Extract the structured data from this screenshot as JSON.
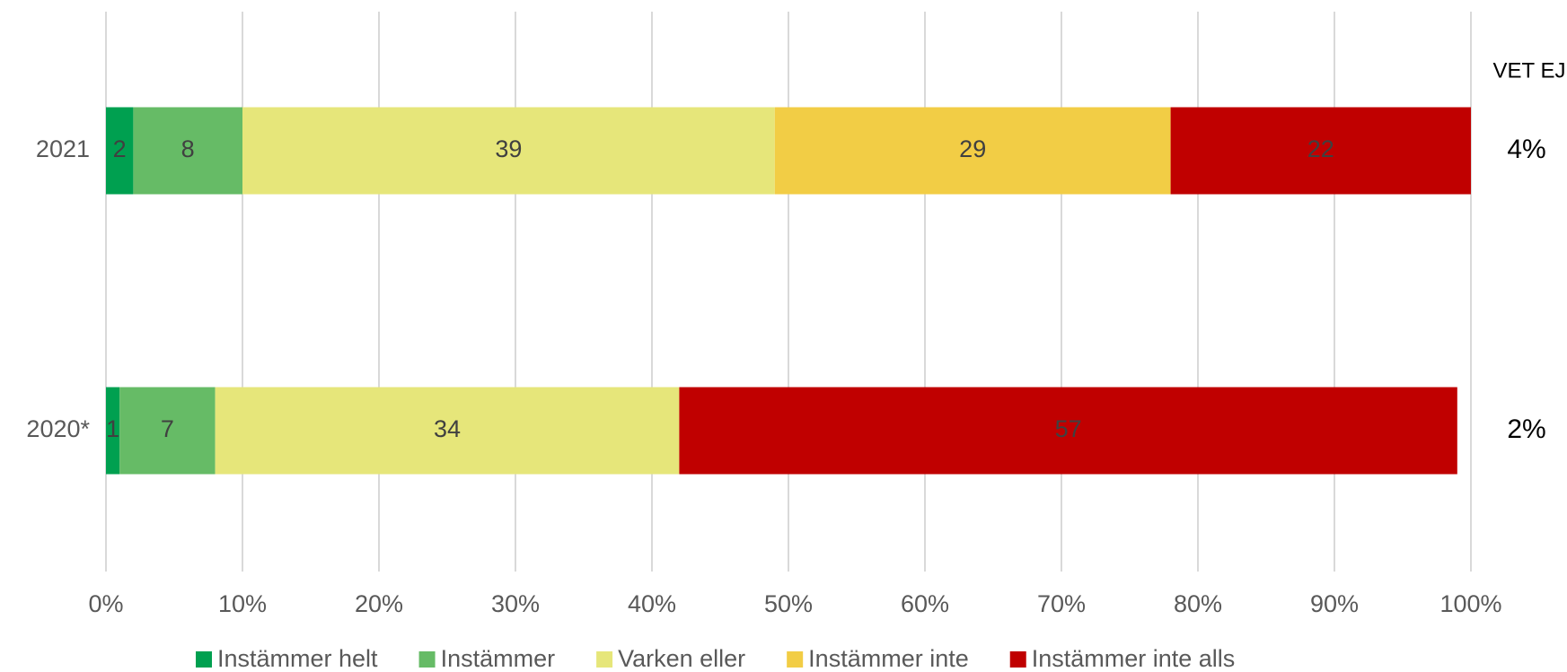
{
  "chart_data": {
    "type": "stacked_barh",
    "categories": [
      "2021",
      "2020*"
    ],
    "series": [
      {
        "name": "Instämmer helt",
        "color": "#00a050",
        "values": [
          2,
          1
        ]
      },
      {
        "name": "Instämmer",
        "color": "#66bb66",
        "values": [
          8,
          7
        ]
      },
      {
        "name": "Varken eller",
        "color": "#e6e67a",
        "values": [
          39,
          34
        ]
      },
      {
        "name": "Instämmer inte",
        "color": "#f2cd45",
        "values": [
          29,
          null
        ]
      },
      {
        "name": "Instämmer inte alls",
        "color": "#c00000",
        "values": [
          22,
          57
        ]
      }
    ],
    "xlim": [
      0,
      100
    ],
    "xticks": [
      {
        "value": 0,
        "label": "0%"
      },
      {
        "value": 10,
        "label": "10%"
      },
      {
        "value": 20,
        "label": "20%"
      },
      {
        "value": 30,
        "label": "30%"
      },
      {
        "value": 40,
        "label": "40%"
      },
      {
        "value": 50,
        "label": "50%"
      },
      {
        "value": 60,
        "label": "60%"
      },
      {
        "value": 70,
        "label": "70%"
      },
      {
        "value": 80,
        "label": "80%"
      },
      {
        "value": 90,
        "label": "90%"
      },
      {
        "value": 100,
        "label": "100%"
      }
    ],
    "grid": true,
    "legend": "bottom",
    "side_column": {
      "title": "VET EJ",
      "values": [
        4,
        2
      ],
      "value_labels": [
        "4%",
        "2%"
      ]
    }
  }
}
